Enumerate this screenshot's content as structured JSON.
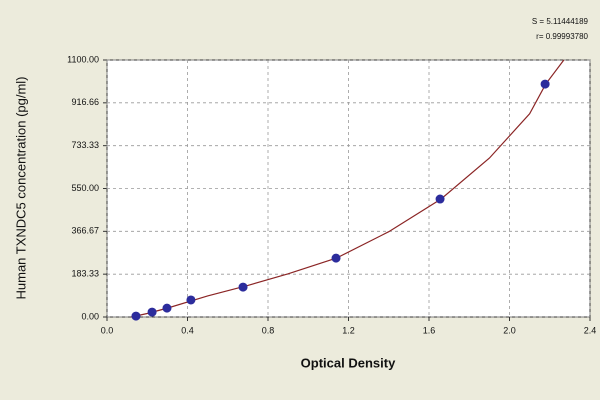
{
  "chart_data": {
    "type": "scatter",
    "annotations": [
      "S = 5.11444189",
      "r= 0.99993780"
    ],
    "x_label": "Optical Density",
    "y_label": "Human TXNDC5 concentration (pg/ml)",
    "series": [
      {
        "color": "#2c2c9c",
        "x": [
          0.144,
          0.224,
          0.298,
          0.417,
          0.676,
          1.138,
          1.655,
          2.177
        ],
        "values": [
          4,
          21,
          38,
          73,
          128,
          252,
          505,
          997
        ]
      }
    ],
    "fit": {
      "color": "#8b2525",
      "x": [
        0.12,
        0.2,
        0.3,
        0.5,
        0.7,
        0.9,
        1.14,
        1.4,
        1.66,
        1.9,
        2.1,
        2.18,
        2.27
      ],
      "values": [
        0,
        15,
        38,
        90,
        135,
        185,
        252,
        365,
        505,
        680,
        870,
        997,
        1100
      ]
    },
    "xlim": [
      0,
      2.4
    ],
    "ylim": [
      0,
      1100
    ],
    "xticks": [
      {
        "value": 0,
        "label": "0.0"
      },
      {
        "value": 0.4,
        "label": "0.4"
      },
      {
        "value": 0.8,
        "label": "0.8"
      },
      {
        "value": 1.2,
        "label": "1.2"
      },
      {
        "value": 1.6,
        "label": "1.6"
      },
      {
        "value": 2.0,
        "label": "2.0"
      },
      {
        "value": 2.4,
        "label": "2.4"
      }
    ],
    "yticks": [
      {
        "value": 0,
        "label": "0.00"
      },
      {
        "value": 183.33,
        "label": "183.33"
      },
      {
        "value": 366.67,
        "label": "366.67"
      },
      {
        "value": 550,
        "label": "550.00"
      },
      {
        "value": 733.33,
        "label": "733.33"
      },
      {
        "value": 916.66,
        "label": "916.66"
      },
      {
        "value": 1100,
        "label": "1100.00"
      }
    ],
    "grid": true
  }
}
